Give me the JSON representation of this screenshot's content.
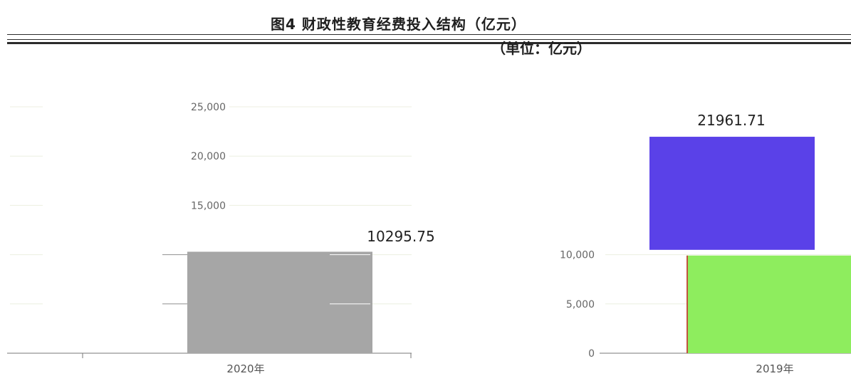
{
  "header": {
    "title": "图4 财政性教育经费投入结构（亿元）",
    "subtitle": "（单位：亿元）"
  },
  "colors": {
    "background": "#ffffff",
    "gridline": "#ecefe0",
    "axis": "#777777",
    "tick_text": "#666666",
    "data_label": "#222222",
    "bar_2020": "#a6a6a6",
    "bar_2019_lower": "#8eed5e",
    "bar_2019_upper": "#5a41e8",
    "rule": "#2b2b2b"
  },
  "chart_data": {
    "type": "bar",
    "title": "图4 财政性教育经费投入结构（亿元）",
    "subtitle": "（单位：亿元）",
    "xlabel": "",
    "ylabel": "",
    "ylim": [
      0,
      25000
    ],
    "yticks": [
      0,
      5000,
      10000,
      15000,
      20000,
      25000
    ],
    "ytick_labels": [
      "0",
      "5,000",
      "10,000",
      "15,000",
      "20,000",
      "25,000"
    ],
    "grid": true,
    "legend": "none",
    "categories": [
      "2020年",
      "2019年"
    ],
    "bars": [
      {
        "category": "2020年",
        "segments": [
          {
            "value": 10295.75,
            "color": "#a6a6a6"
          }
        ],
        "label": "10295.75"
      },
      {
        "category": "2019年",
        "segments": [
          {
            "value": 10200,
            "color": "#8eed5e"
          },
          {
            "value": 11761.71,
            "color": "#5a41e8"
          }
        ],
        "label": "21961.71"
      }
    ]
  }
}
